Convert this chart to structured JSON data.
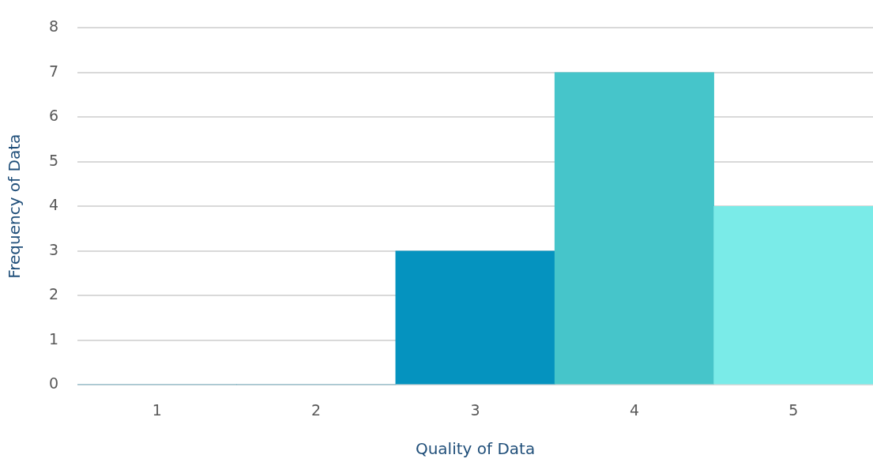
{
  "chart_data": {
    "type": "bar",
    "xlabel": "Quality of Data",
    "ylabel": "Frequency of Data",
    "categories": [
      "1",
      "2",
      "3",
      "4",
      "5"
    ],
    "values": [
      0,
      0,
      3,
      7,
      4
    ],
    "colors": [
      "#0593bf",
      "#0593bf",
      "#0593bf",
      "#46c5ca",
      "#7aebe8"
    ],
    "ylim": [
      0,
      8
    ],
    "yticks": [
      0,
      1,
      2,
      3,
      4,
      5,
      6,
      7,
      8
    ],
    "grid": "y",
    "legend": false
  }
}
